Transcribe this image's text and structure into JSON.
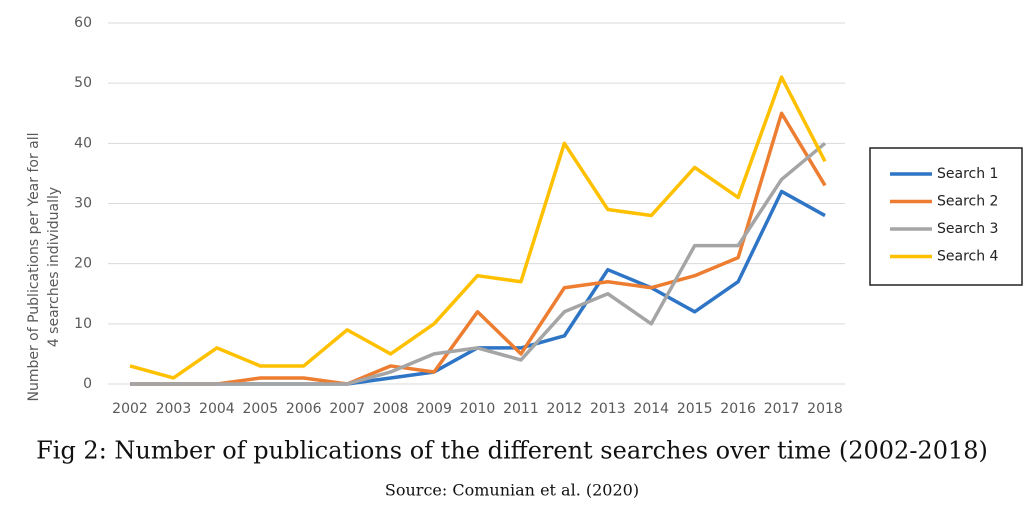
{
  "chart_data": {
    "type": "line",
    "ylabel": [
      "Number of Publications per Year for all",
      "4 searches individually"
    ],
    "caption": "Fig 2: Number of publications of the different searches over time (2002-2018)",
    "source": "Source: Comunian et al. (2020)",
    "categories": [
      "2002",
      "2003",
      "2004",
      "2005",
      "2006",
      "2007",
      "2008",
      "2009",
      "2010",
      "2011",
      "2012",
      "2013",
      "2014",
      "2015",
      "2016",
      "2017",
      "2018"
    ],
    "series": [
      {
        "name": "Search 1",
        "color": "#2e75c6",
        "values": [
          0,
          0,
          0,
          0,
          0,
          0,
          1,
          2,
          6,
          6,
          8,
          19,
          16,
          12,
          17,
          32,
          28
        ]
      },
      {
        "name": "Search 2",
        "color": "#ed7d31",
        "values": [
          0,
          0,
          0,
          1,
          1,
          0,
          3,
          2,
          12,
          5,
          16,
          17,
          16,
          18,
          21,
          45,
          33
        ]
      },
      {
        "name": "Search 3",
        "color": "#a5a5a5",
        "values": [
          0,
          0,
          0,
          0,
          0,
          0,
          2,
          5,
          6,
          4,
          12,
          15,
          10,
          23,
          23,
          34,
          40
        ]
      },
      {
        "name": "Search 4",
        "color": "#ffc000",
        "values": [
          3,
          1,
          6,
          3,
          3,
          9,
          5,
          10,
          18,
          17,
          40,
          29,
          28,
          36,
          31,
          51,
          37
        ]
      }
    ],
    "ylim": [
      0,
      60
    ],
    "yticks": [
      0,
      10,
      20,
      30,
      40,
      50,
      60
    ],
    "grid": true,
    "legend": "right"
  }
}
